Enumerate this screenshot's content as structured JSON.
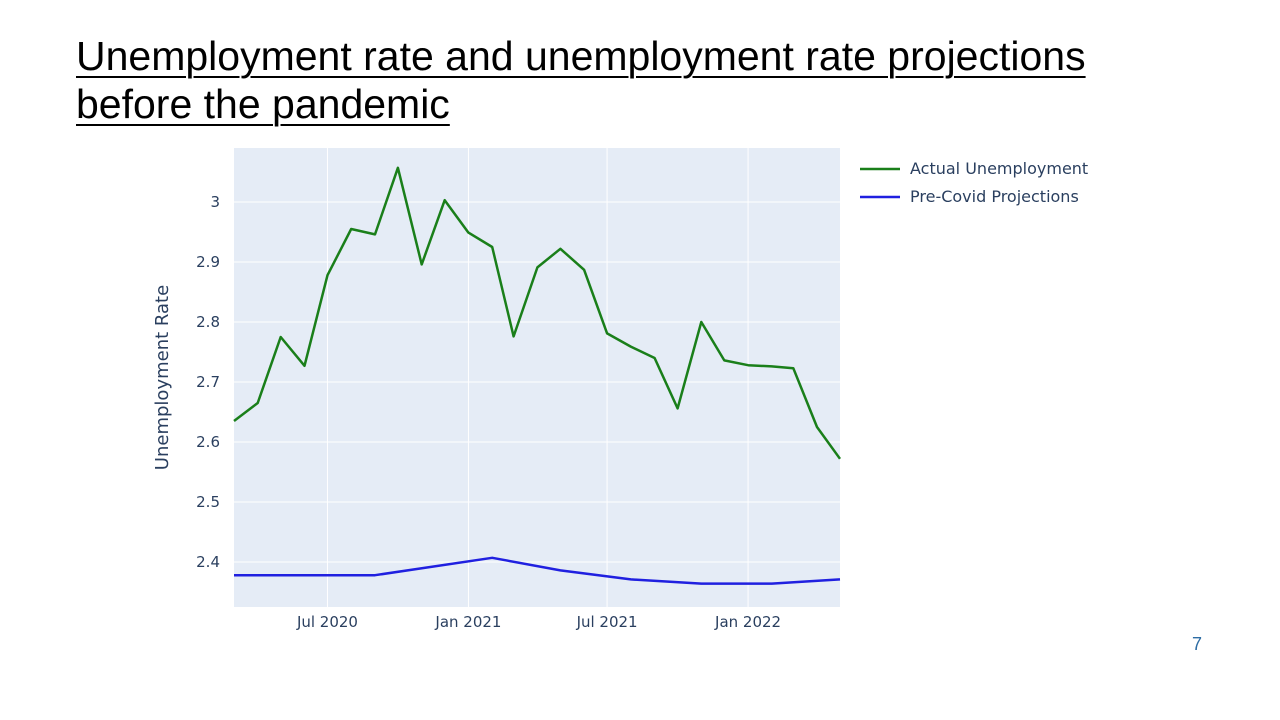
{
  "slide": {
    "title": "Unemployment rate and unemployment rate projections before the pandemic",
    "page_number": "7"
  },
  "colors": {
    "plot_background": "#e5ecf6",
    "grid": "#ffffff",
    "axis_text": "#2a3f5f"
  },
  "chart_data": {
    "type": "line",
    "title": "",
    "xlabel": "",
    "ylabel": "Unemployment Rate",
    "x_tick_labels": [
      "Jul 2020",
      "Jan 2021",
      "Jul 2021",
      "Jan 2022"
    ],
    "x_ticks": [
      "2020-07-01",
      "2021-01-01",
      "2021-07-01",
      "2022-01-01"
    ],
    "y_ticks": [
      2.4,
      2.5,
      2.6,
      2.7,
      2.8,
      2.9,
      3
    ],
    "y_tick_labels": [
      "2.4",
      "2.5",
      "2.6",
      "2.7",
      "2.8",
      "2.9",
      "3"
    ],
    "xlim": [
      "2020-03-01",
      "2022-05-01"
    ],
    "ylim": [
      2.325,
      3.09
    ],
    "grid": true,
    "legend_position": "top-right, outside plot",
    "series": [
      {
        "name": "Actual Unemployment",
        "color": "#1a7f1a",
        "x": [
          "2020-03-01",
          "2020-04-01",
          "2020-05-01",
          "2020-06-01",
          "2020-07-01",
          "2020-08-01",
          "2020-09-01",
          "2020-10-01",
          "2020-11-01",
          "2020-12-01",
          "2021-01-01",
          "2021-02-01",
          "2021-03-01",
          "2021-04-01",
          "2021-05-01",
          "2021-06-01",
          "2021-07-01",
          "2021-08-01",
          "2021-09-01",
          "2021-10-01",
          "2021-11-01",
          "2021-12-01",
          "2022-01-01",
          "2022-02-01",
          "2022-03-01",
          "2022-04-01",
          "2022-05-01"
        ],
        "y": [
          2.635,
          2.665,
          2.775,
          2.727,
          2.878,
          2.955,
          2.946,
          3.057,
          2.896,
          3.003,
          2.949,
          2.925,
          2.776,
          2.891,
          2.922,
          2.887,
          2.781,
          2.759,
          2.74,
          2.656,
          2.8,
          2.736,
          2.728,
          2.726,
          2.723,
          2.625,
          2.572
        ]
      },
      {
        "name": "Pre-Covid Projections",
        "color": "#2020e0",
        "x": [
          "2020-03-01",
          "2020-09-01",
          "2021-02-01",
          "2021-05-01",
          "2021-08-01",
          "2021-11-01",
          "2022-02-01",
          "2022-05-01"
        ],
        "y": [
          2.378,
          2.378,
          2.407,
          2.386,
          2.371,
          2.364,
          2.364,
          2.371
        ]
      }
    ]
  }
}
